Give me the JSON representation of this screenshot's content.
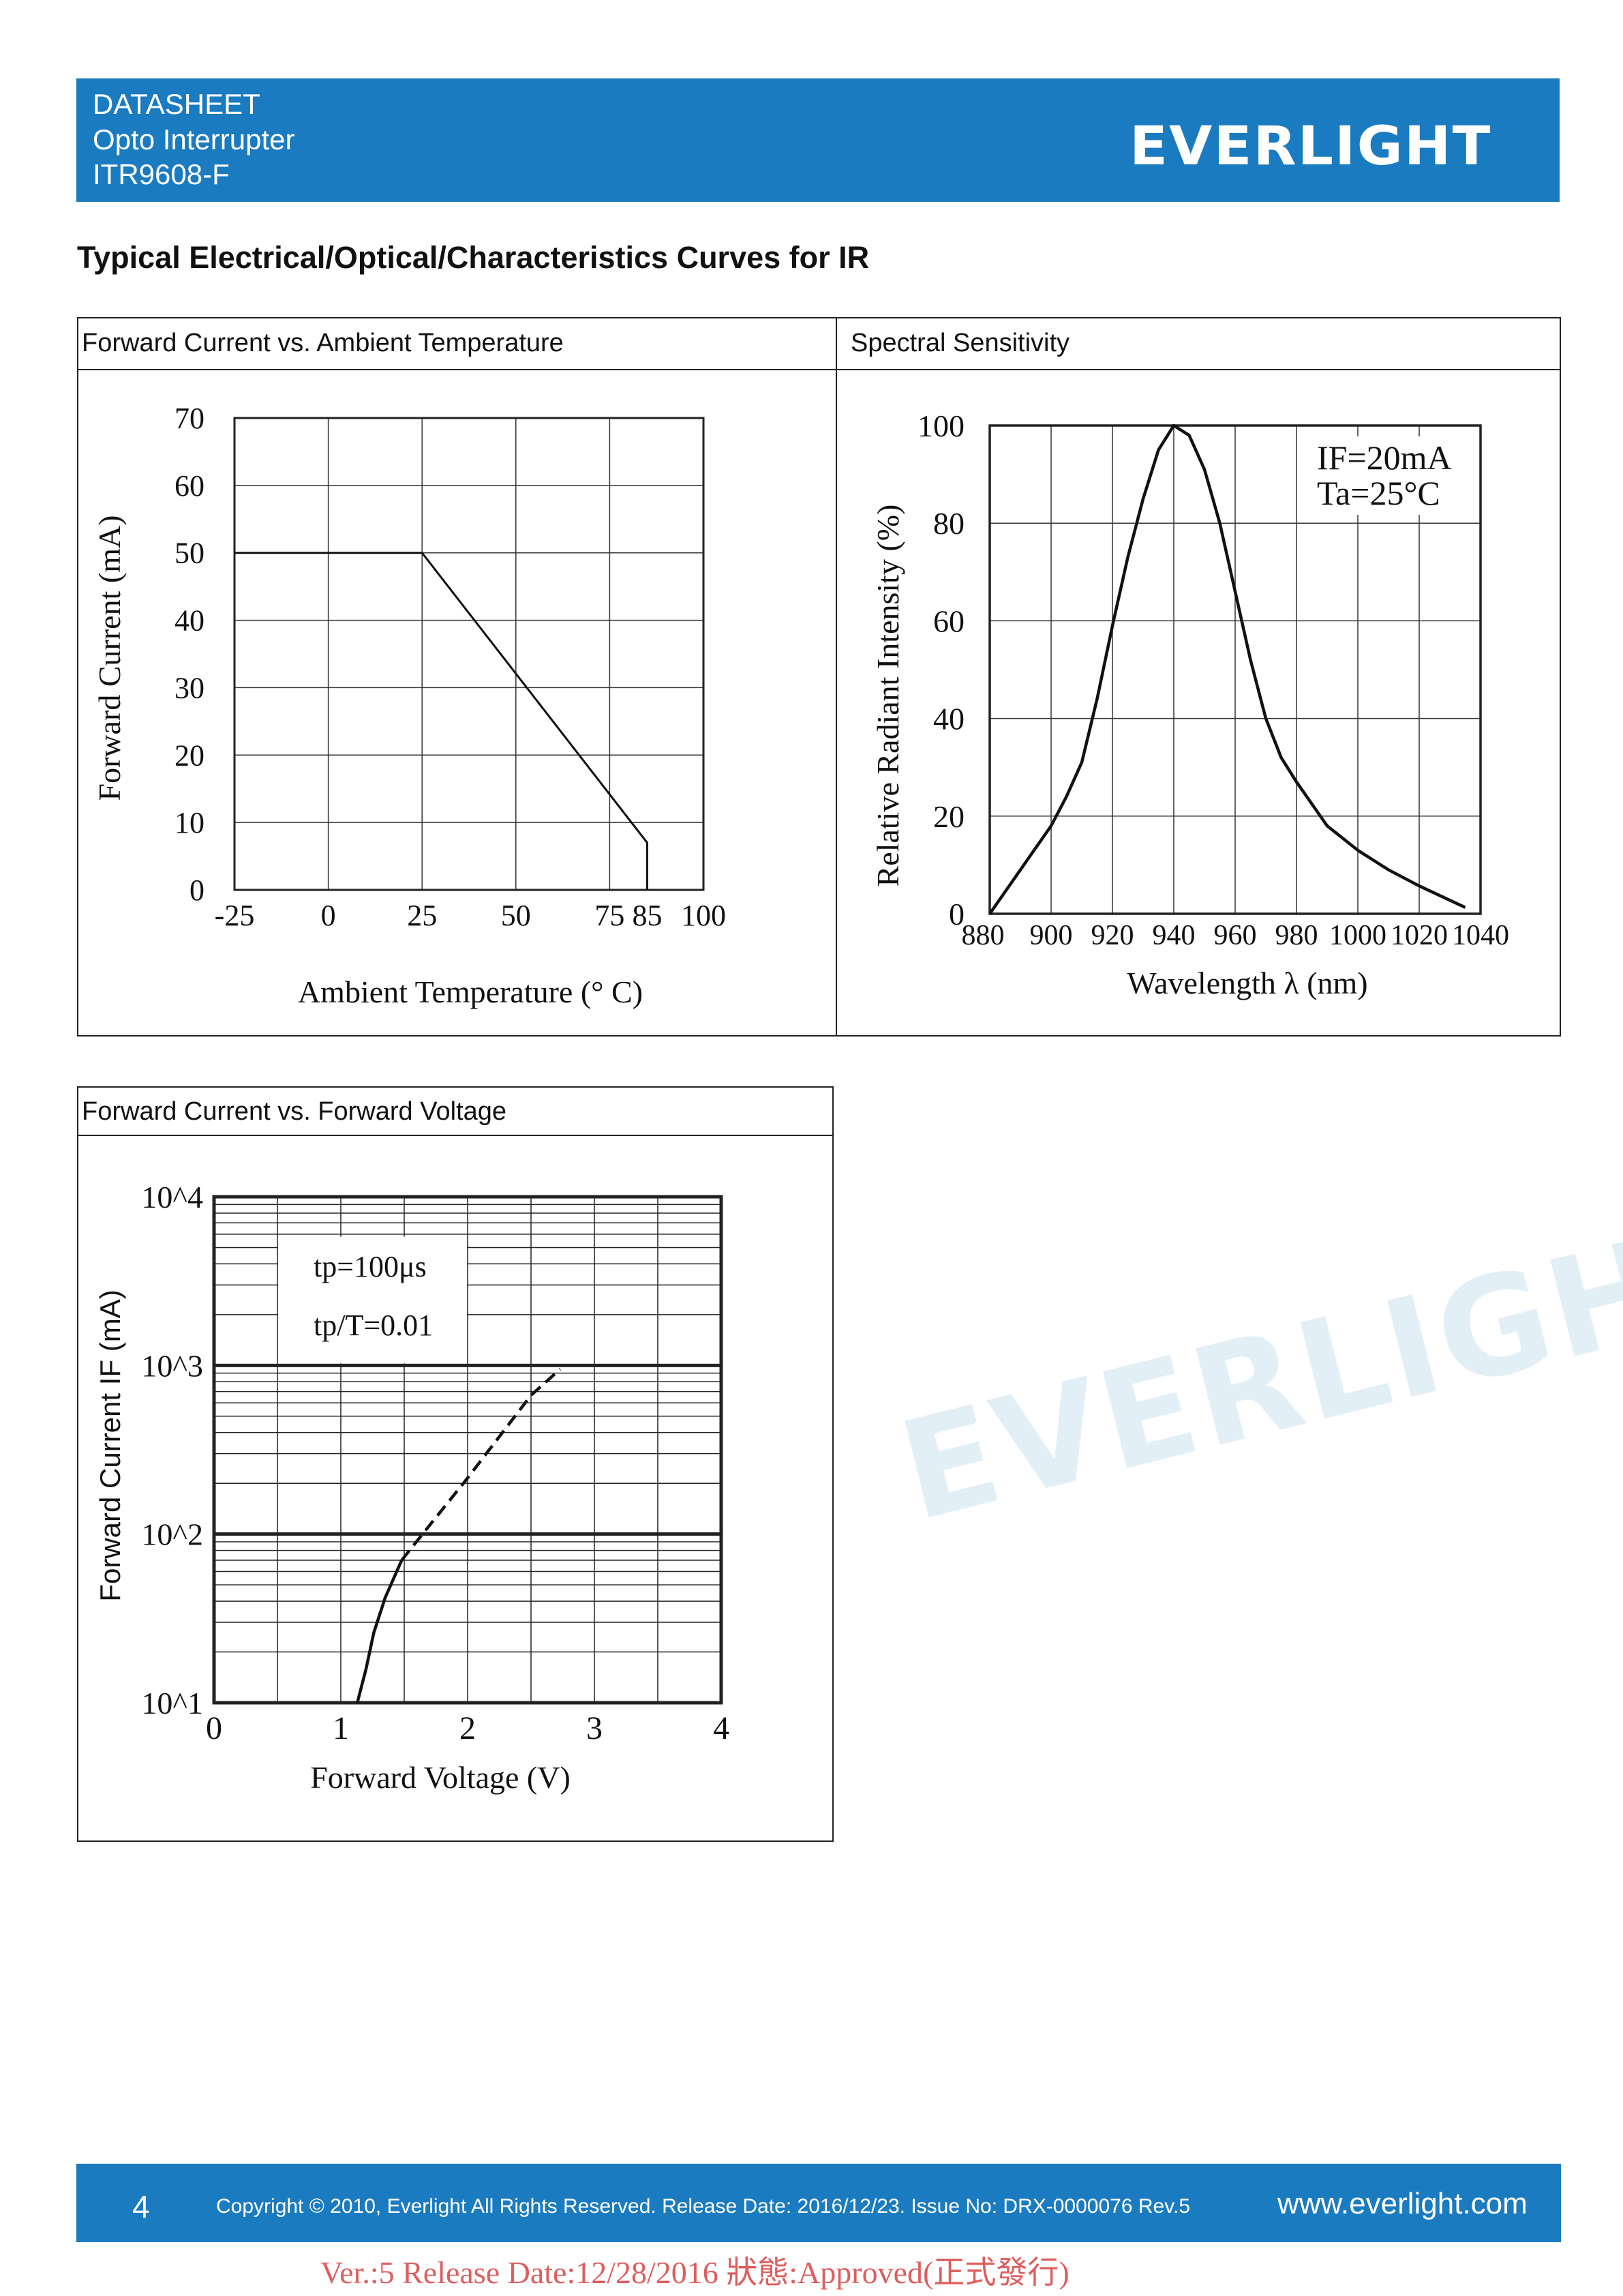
{
  "header": {
    "line1": "DATASHEET",
    "line2": "Opto Interrupter",
    "line3": "ITR9608-F",
    "logo": "EVERLIGHT",
    "brand_color": "#1b7bc0"
  },
  "page_title": "Typical Electrical/Optical/Characteristics Curves for IR",
  "panels": {
    "p1_title": "Forward Current vs. Ambient Temperature",
    "p2_title": "Spectral Sensitivity",
    "p3_title": "Forward Current vs. Forward Voltage"
  },
  "watermark": "EVERLIGHT",
  "chart_data": [
    {
      "type": "line",
      "xlabel": "Ambient Temperature (° C)",
      "ylabel": "Forward Current (mA)",
      "xlim": [
        -25,
        100
      ],
      "ylim": [
        0,
        70
      ],
      "x_ticks": [
        -25,
        0,
        25,
        50,
        75,
        85,
        100
      ],
      "y_ticks": [
        0,
        10,
        20,
        30,
        40,
        50,
        60,
        70
      ],
      "grid": true,
      "series": [
        {
          "x": [
            -25,
            25,
            85,
            85
          ],
          "y": [
            50,
            50,
            7,
            0
          ]
        }
      ]
    },
    {
      "type": "line",
      "xlabel": "Wavelength λ (nm)",
      "ylabel": "Relative Radiant Intensity (%)",
      "xlim": [
        880,
        1040
      ],
      "ylim": [
        0,
        100
      ],
      "x_ticks": [
        880,
        900,
        920,
        940,
        960,
        980,
        1000,
        1020,
        1040
      ],
      "y_ticks": [
        0,
        20,
        40,
        60,
        80,
        100
      ],
      "grid": true,
      "annotations": [
        "IF=20mA",
        "Ta=25°C"
      ],
      "series": [
        {
          "x": [
            880,
            890,
            900,
            905,
            910,
            915,
            920,
            925,
            930,
            935,
            940,
            945,
            950,
            955,
            960,
            965,
            970,
            975,
            980,
            990,
            1000,
            1010,
            1020,
            1035
          ],
          "y": [
            0,
            9,
            18,
            24,
            31,
            44,
            59,
            73,
            85,
            95,
            100,
            98,
            91,
            80,
            66,
            52,
            40,
            32,
            27,
            18,
            13,
            9,
            5.7,
            1.3
          ]
        }
      ]
    },
    {
      "type": "line",
      "xlabel": "Forward Voltage (V)",
      "ylabel": "Forward Current IF (mA)",
      "xlim": [
        0,
        4
      ],
      "ylim": [
        10,
        10000
      ],
      "yscale": "log",
      "x_ticks": [
        0,
        1,
        2,
        3,
        4
      ],
      "y_ticks": [
        "10^1",
        "10^2",
        "10^3",
        "10^4"
      ],
      "grid": true,
      "annotations": [
        "tp=100μs",
        "tp/T=0.01"
      ],
      "series": [
        {
          "style": "solid",
          "x": [
            1.13,
            1.2,
            1.26,
            1.35,
            1.48
          ],
          "y": [
            10,
            16,
            26,
            42,
            70
          ]
        },
        {
          "style": "dashed",
          "x": [
            1.48,
            1.645,
            2.0,
            2.5,
            2.73
          ],
          "y": [
            70,
            100,
            215,
            665,
            950
          ]
        }
      ]
    }
  ],
  "footer": {
    "page_number": "4",
    "copyright": "Copyright © 2010, Everlight All Rights Reserved. Release Date: 2016/12/23. Issue No: DRX-0000076 Rev.5",
    "website": "www.everlight.com",
    "stamp": "Ver.:5    Release Date:12/28/2016    狀態:Approved(正式發行)"
  }
}
